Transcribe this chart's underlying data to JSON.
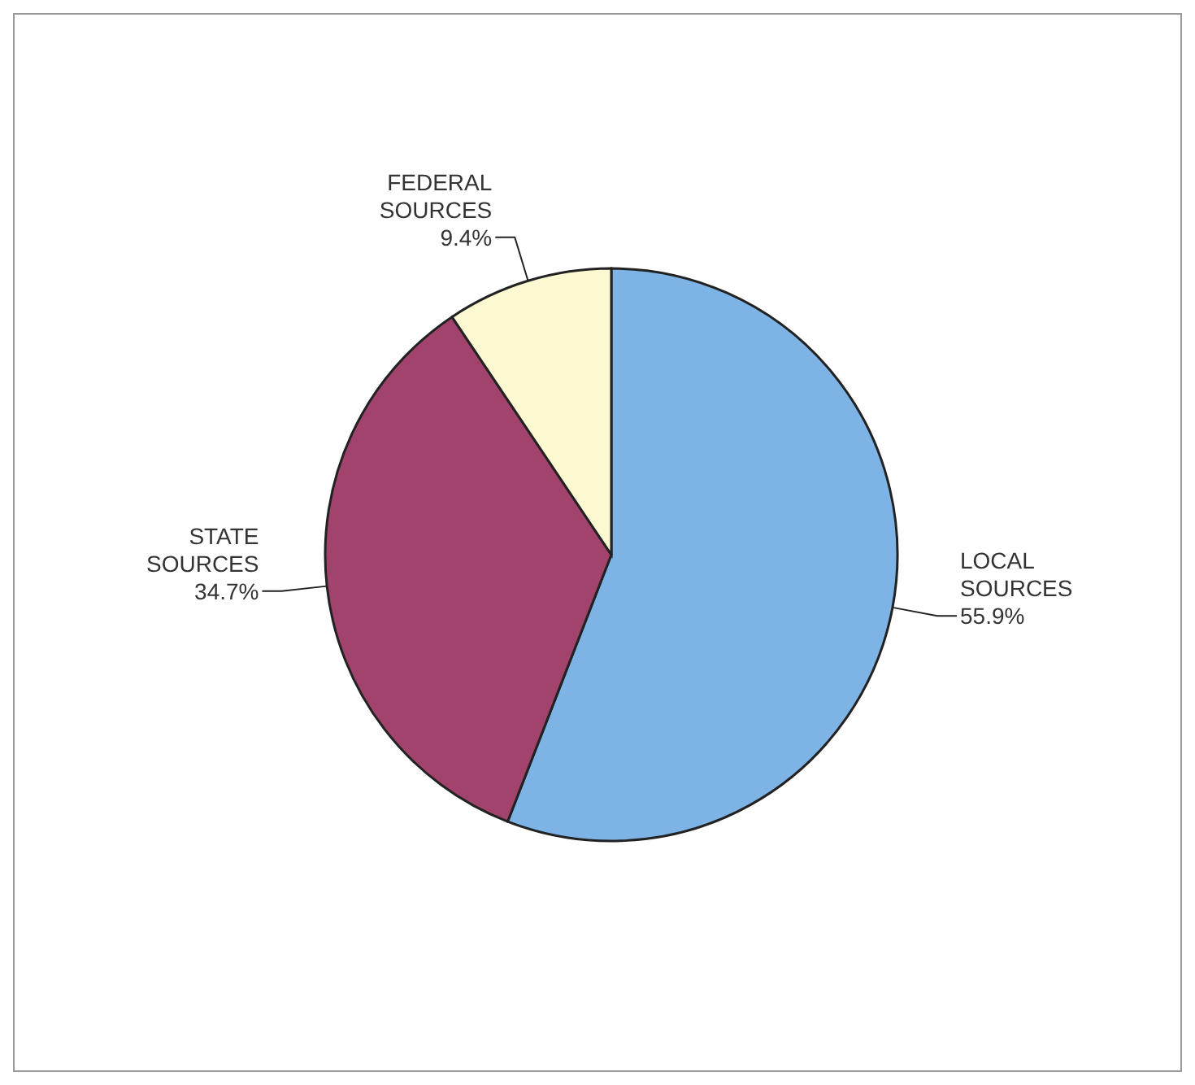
{
  "chart_data": {
    "type": "pie",
    "categories": [
      "LOCAL SOURCES",
      "STATE SOURCES",
      "FEDERAL SOURCES"
    ],
    "values": [
      55.9,
      34.7,
      9.4
    ],
    "value_labels": [
      "55.9%",
      "34.7%",
      "9.4%"
    ],
    "colors": [
      "#7eb3e6",
      "#a1436c",
      "#fcf8d2"
    ]
  }
}
